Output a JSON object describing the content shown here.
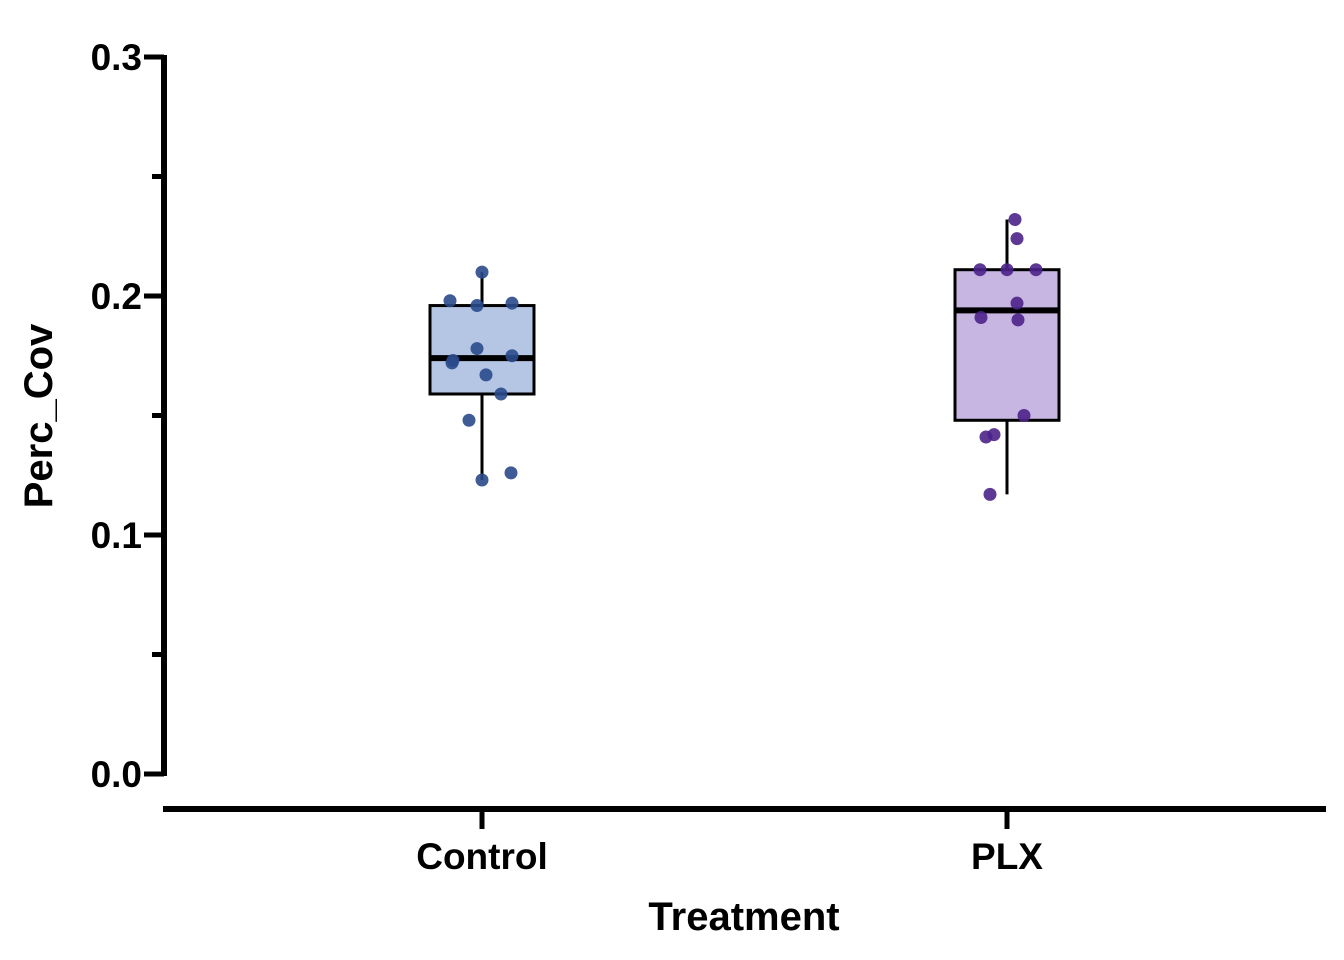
{
  "chart_data": {
    "type": "box",
    "xlabel": "Treatment",
    "ylabel": "Perc_Cov",
    "ylim": [
      0,
      0.3
    ],
    "yticks": [
      "0.0",
      "0.1",
      "0.2",
      "0.3"
    ],
    "yminor_ticks": [
      0.05,
      0.15,
      0.25
    ],
    "categories": [
      "Control",
      "PLX"
    ],
    "grid": false,
    "legend": "none",
    "series": [
      {
        "category": "Control",
        "box_fill": "#b4c6e4",
        "point_color": "#2a4a8c",
        "whisker_low": 0.123,
        "q1": 0.159,
        "median": 0.174,
        "q3": 0.196,
        "whisker_high": 0.21,
        "points": [
          0.21,
          0.198,
          0.196,
          0.197,
          0.178,
          0.172,
          0.173,
          0.175,
          0.167,
          0.159,
          0.148,
          0.126,
          0.123
        ]
      },
      {
        "category": "PLX",
        "box_fill": "#c8b6e2",
        "point_color": "#4b2289",
        "whisker_low": 0.117,
        "q1": 0.148,
        "median": 0.194,
        "q3": 0.211,
        "whisker_high": 0.232,
        "points": [
          0.232,
          0.224,
          0.211,
          0.211,
          0.211,
          0.197,
          0.191,
          0.19,
          0.15,
          0.142,
          0.141,
          0.117
        ]
      }
    ]
  }
}
